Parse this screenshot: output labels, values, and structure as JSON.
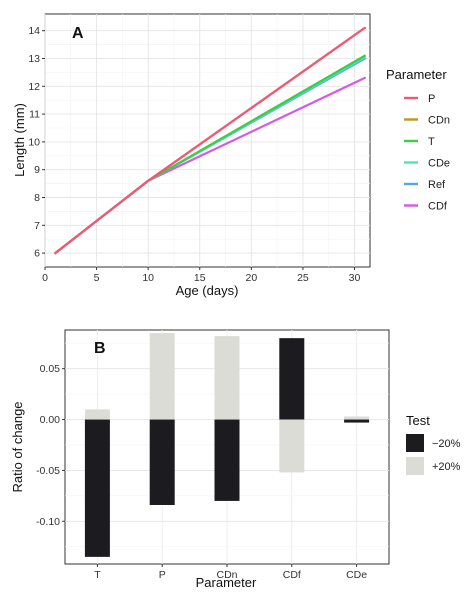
{
  "chart_data": [
    {
      "type": "line",
      "panel_label": "A",
      "xlabel": "Age (days)",
      "ylabel": "Length (mm)",
      "xlim": [
        0,
        31.5
      ],
      "ylim": [
        5.5,
        14.6
      ],
      "xticks": [
        0,
        5,
        10,
        15,
        20,
        25,
        30
      ],
      "yticks": [
        6,
        7,
        8,
        9,
        10,
        11,
        12,
        13,
        14
      ],
      "grid": true,
      "legend_title": "Parameter",
      "legend_position": "right",
      "series": [
        {
          "name": "P",
          "color": "#f0577a",
          "x": [
            1,
            10,
            31
          ],
          "y": [
            6.0,
            8.6,
            14.1
          ]
        },
        {
          "name": "CDn",
          "color": "#b99a1a",
          "x": [
            1,
            10,
            31
          ],
          "y": [
            6.0,
            8.6,
            14.1
          ]
        },
        {
          "name": "T",
          "color": "#3fcc3f",
          "x": [
            1,
            10,
            31
          ],
          "y": [
            6.0,
            8.6,
            13.1
          ]
        },
        {
          "name": "CDe",
          "color": "#49e6b8",
          "x": [
            1,
            10,
            31
          ],
          "y": [
            6.0,
            8.6,
            13.05
          ]
        },
        {
          "name": "Ref",
          "color": "#5aa7e6",
          "x": [
            1,
            10,
            31
          ],
          "y": [
            6.0,
            8.6,
            13.0
          ]
        },
        {
          "name": "CDf",
          "color": "#d45ae6",
          "x": [
            1,
            10,
            31
          ],
          "y": [
            6.0,
            8.6,
            12.3
          ]
        }
      ]
    },
    {
      "type": "bar",
      "panel_label": "B",
      "xlabel": "Parameter",
      "ylabel": "Ratio of change",
      "ylim": [
        -0.142,
        0.088
      ],
      "yticks": [
        0.05,
        0.0,
        -0.05,
        -0.1
      ],
      "ytick_labels": [
        "0.05",
        "0.00",
        "-0.05",
        "-0.10"
      ],
      "grid": true,
      "categories": [
        "T",
        "P",
        "CDn",
        "CDf",
        "CDe"
      ],
      "legend_title": "Test",
      "legend_position": "right",
      "series": [
        {
          "name": "−20%",
          "color": "#1c1c20",
          "values": [
            -0.135,
            -0.084,
            -0.08,
            0.08,
            -0.003
          ]
        },
        {
          "name": "+20%",
          "color": "#dcdcd6",
          "values": [
            0.01,
            0.085,
            0.082,
            -0.052,
            0.003
          ]
        }
      ]
    }
  ]
}
